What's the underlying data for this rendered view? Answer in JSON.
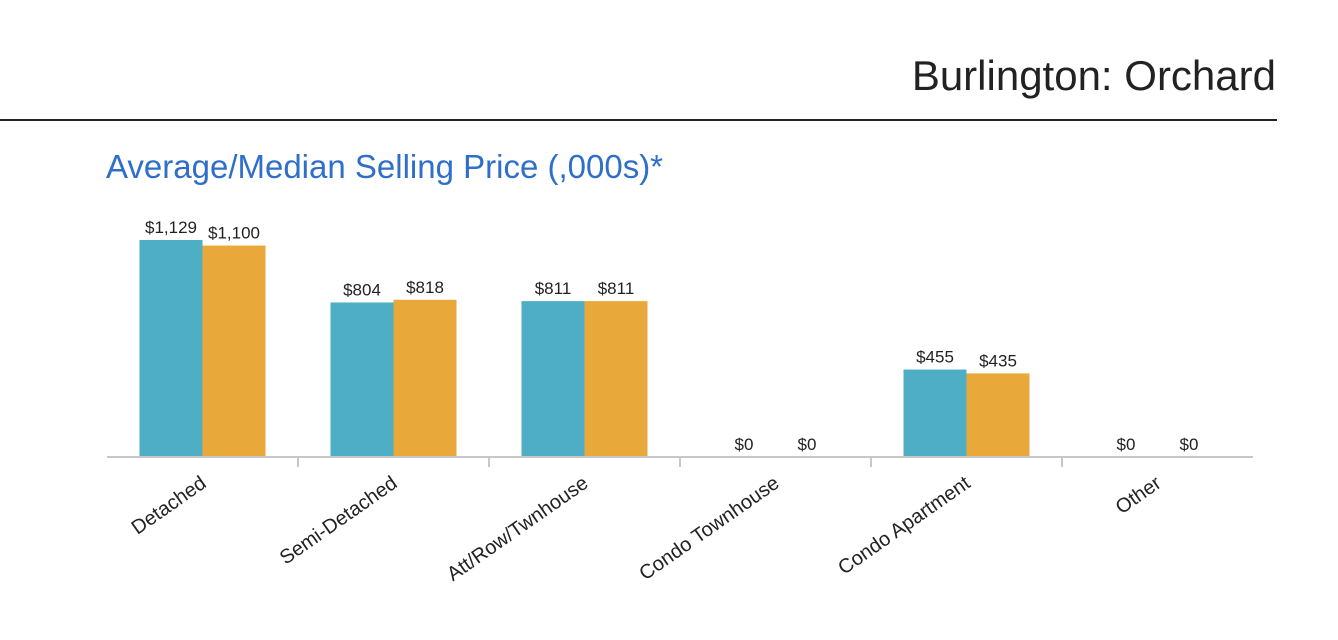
{
  "header": {
    "title": "Burlington: Orchard"
  },
  "chart_data": {
    "type": "bar",
    "title": "Average/Median Selling Price (,000s)*",
    "categories": [
      "Detached",
      "Semi-Detached",
      "Att/Row/Twnhouse",
      "Condo Townhouse",
      "Condo Apartment",
      "Other"
    ],
    "series": [
      {
        "name": "Average",
        "color": "#4daec6",
        "values": [
          1129,
          804,
          811,
          0,
          455,
          0
        ],
        "labels": [
          "$1,129",
          "$804",
          "$811",
          "$0",
          "$455",
          "$0"
        ]
      },
      {
        "name": "Median",
        "color": "#e8a93a",
        "values": [
          1100,
          818,
          811,
          0,
          435,
          0
        ],
        "labels": [
          "$1,100",
          "$818",
          "$811",
          "$0",
          "$435",
          "$0"
        ]
      }
    ],
    "ylim": [
      0,
      1129
    ],
    "xlabel": "",
    "ylabel": "",
    "grid": false
  }
}
